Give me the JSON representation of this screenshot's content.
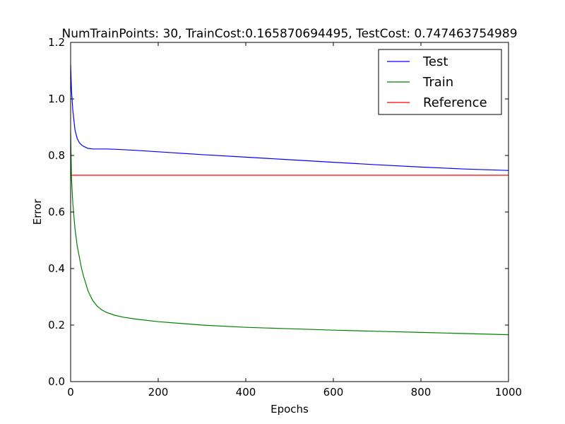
{
  "chart_data": {
    "type": "line",
    "title": "NumTrainPoints: 30, TrainCost:0.165870694495, TestCost: 0.747463754989",
    "xlabel": "Epochs",
    "ylabel": "Error",
    "xlim": [
      0,
      1000
    ],
    "ylim": [
      0.0,
      1.2
    ],
    "xticks": [
      0,
      200,
      400,
      600,
      800,
      1000
    ],
    "xtick_labels": [
      "0",
      "200",
      "400",
      "600",
      "800",
      "1000"
    ],
    "yticks": [
      0.0,
      0.2,
      0.4,
      0.6,
      0.8,
      1.0,
      1.2
    ],
    "ytick_labels": [
      "0.0",
      "0.2",
      "0.4",
      "0.6",
      "0.8",
      "1.0",
      "1.2"
    ],
    "grid": false,
    "legend_position": "top-right",
    "series": [
      {
        "name": "Test",
        "color": "#0000ff",
        "x": [
          0,
          2,
          5,
          10,
          15,
          20,
          25,
          30,
          40,
          50,
          60,
          80,
          100,
          150,
          200,
          300,
          400,
          500,
          600,
          700,
          800,
          900,
          1000
        ],
        "y": [
          1.12,
          1.03,
          0.96,
          0.89,
          0.86,
          0.845,
          0.837,
          0.832,
          0.825,
          0.823,
          0.823,
          0.823,
          0.822,
          0.818,
          0.813,
          0.803,
          0.794,
          0.785,
          0.776,
          0.767,
          0.759,
          0.752,
          0.747
        ]
      },
      {
        "name": "Train",
        "color": "#008000",
        "x": [
          0,
          2,
          5,
          10,
          15,
          20,
          25,
          30,
          40,
          50,
          60,
          70,
          80,
          100,
          120,
          150,
          200,
          300,
          400,
          500,
          600,
          700,
          800,
          900,
          1000
        ],
        "y": [
          0.88,
          0.72,
          0.63,
          0.54,
          0.48,
          0.44,
          0.4,
          0.37,
          0.32,
          0.288,
          0.268,
          0.255,
          0.246,
          0.235,
          0.228,
          0.221,
          0.212,
          0.2,
          0.192,
          0.187,
          0.182,
          0.178,
          0.174,
          0.17,
          0.166
        ]
      },
      {
        "name": "Reference",
        "color": "#ff0000",
        "x": [
          0,
          1000
        ],
        "y": [
          0.73,
          0.73
        ]
      }
    ]
  }
}
